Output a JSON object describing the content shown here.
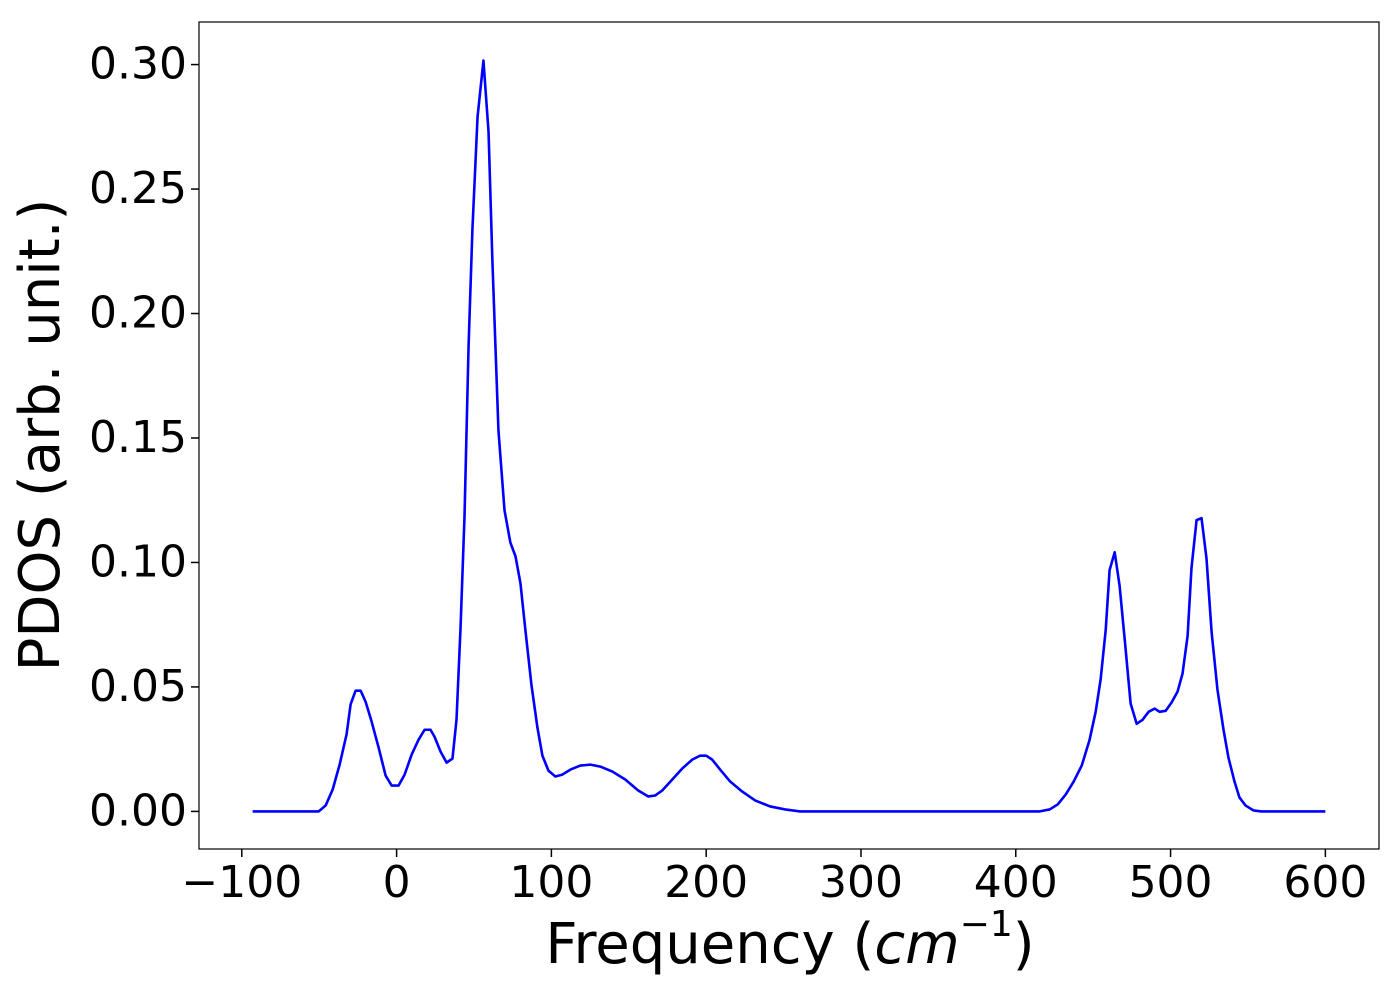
{
  "chart_data": {
    "type": "line",
    "xlabel": [
      "Frequency (",
      "cm",
      "−1",
      ")"
    ],
    "ylabel": "PDOS (arb. unit.)",
    "xlim": [
      -127.65,
      634.65
    ],
    "ylim": [
      -0.0151,
      0.3171
    ],
    "xticks": [
      {
        "value": -100,
        "label": "−100"
      },
      0,
      100,
      200,
      300,
      400,
      500,
      600
    ],
    "yticks": [
      {
        "value": 0,
        "label": "0.00"
      },
      {
        "value": 0.05,
        "label": "0.05"
      },
      {
        "value": 0.1,
        "label": "0.10"
      },
      {
        "value": 0.15,
        "label": "0.15"
      },
      {
        "value": 0.2,
        "label": "0.20"
      },
      {
        "value": 0.25,
        "label": "0.25"
      },
      {
        "value": 0.3,
        "label": "0.30"
      }
    ],
    "grid": false,
    "x": [
      -93,
      -50.3,
      -45.8,
      -41.3,
      -36.8,
      -32.3,
      -29.7,
      -26.5,
      -23.2,
      -20,
      -16.1,
      -11.6,
      -7.1,
      -3.2,
      1.3,
      5.2,
      9.7,
      14.2,
      18.1,
      21.9,
      24.5,
      28.4,
      32.3,
      36.1,
      38.7,
      41.3,
      43.9,
      46.5,
      49,
      52.3,
      56.1,
      59.4,
      61.9,
      65.8,
      69.7,
      73.5,
      76.8,
      80,
      83.2,
      87.1,
      91,
      94.2,
      98.1,
      102.6,
      107.1,
      112.3,
      118.7,
      125.2,
      131.6,
      139.4,
      147.7,
      156.1,
      162.6,
      167.1,
      171.6,
      178.1,
      184.5,
      191,
      196.1,
      200,
      203.9,
      209,
      215.5,
      223.2,
      231.6,
      241.3,
      251,
      260.6,
      415.5,
      421.9,
      427.1,
      432.3,
      437.4,
      442.6,
      447.7,
      451.6,
      454.8,
      458.1,
      460.6,
      463.9,
      467.1,
      471,
      474.2,
      478.1,
      481.9,
      485.8,
      489.7,
      492.9,
      496.8,
      500.6,
      504.5,
      507.7,
      511,
      513.5,
      516.8,
      520,
      523.2,
      526.5,
      530.3,
      534.2,
      537.4,
      541.3,
      544.5,
      548.4,
      553.5,
      558.7,
      600
    ],
    "series": [
      {
        "name": "PDOS",
        "color": "#0000ff",
        "values": [
          0,
          0,
          0.0024,
          0.0088,
          0.0188,
          0.031,
          0.043,
          0.0485,
          0.0485,
          0.044,
          0.036,
          0.0256,
          0.0144,
          0.0104,
          0.0104,
          0.0148,
          0.0228,
          0.0288,
          0.0328,
          0.0328,
          0.03,
          0.024,
          0.0196,
          0.0212,
          0.0368,
          0.0737,
          0.119,
          0.187,
          0.234,
          0.279,
          0.3016,
          0.273,
          0.221,
          0.153,
          0.121,
          0.108,
          0.1025,
          0.0917,
          0.0729,
          0.0509,
          0.0336,
          0.0224,
          0.0164,
          0.014,
          0.0148,
          0.0168,
          0.0184,
          0.0188,
          0.018,
          0.016,
          0.0128,
          0.0084,
          0.006,
          0.0064,
          0.0084,
          0.0128,
          0.0172,
          0.0208,
          0.0224,
          0.0224,
          0.0208,
          0.0168,
          0.012,
          0.008,
          0.0044,
          0.002,
          0.0008,
          0,
          0,
          0.0008,
          0.0028,
          0.0068,
          0.012,
          0.0184,
          0.0288,
          0.04,
          0.0529,
          0.0729,
          0.0969,
          0.1041,
          0.0905,
          0.0649,
          0.0433,
          0.0352,
          0.0368,
          0.04,
          0.0413,
          0.04,
          0.0404,
          0.0437,
          0.0481,
          0.0553,
          0.0705,
          0.0977,
          0.117,
          0.1178,
          0.1017,
          0.0721,
          0.0489,
          0.0328,
          0.0216,
          0.012,
          0.0056,
          0.0024,
          0.0004,
          0,
          0
        ]
      }
    ]
  }
}
